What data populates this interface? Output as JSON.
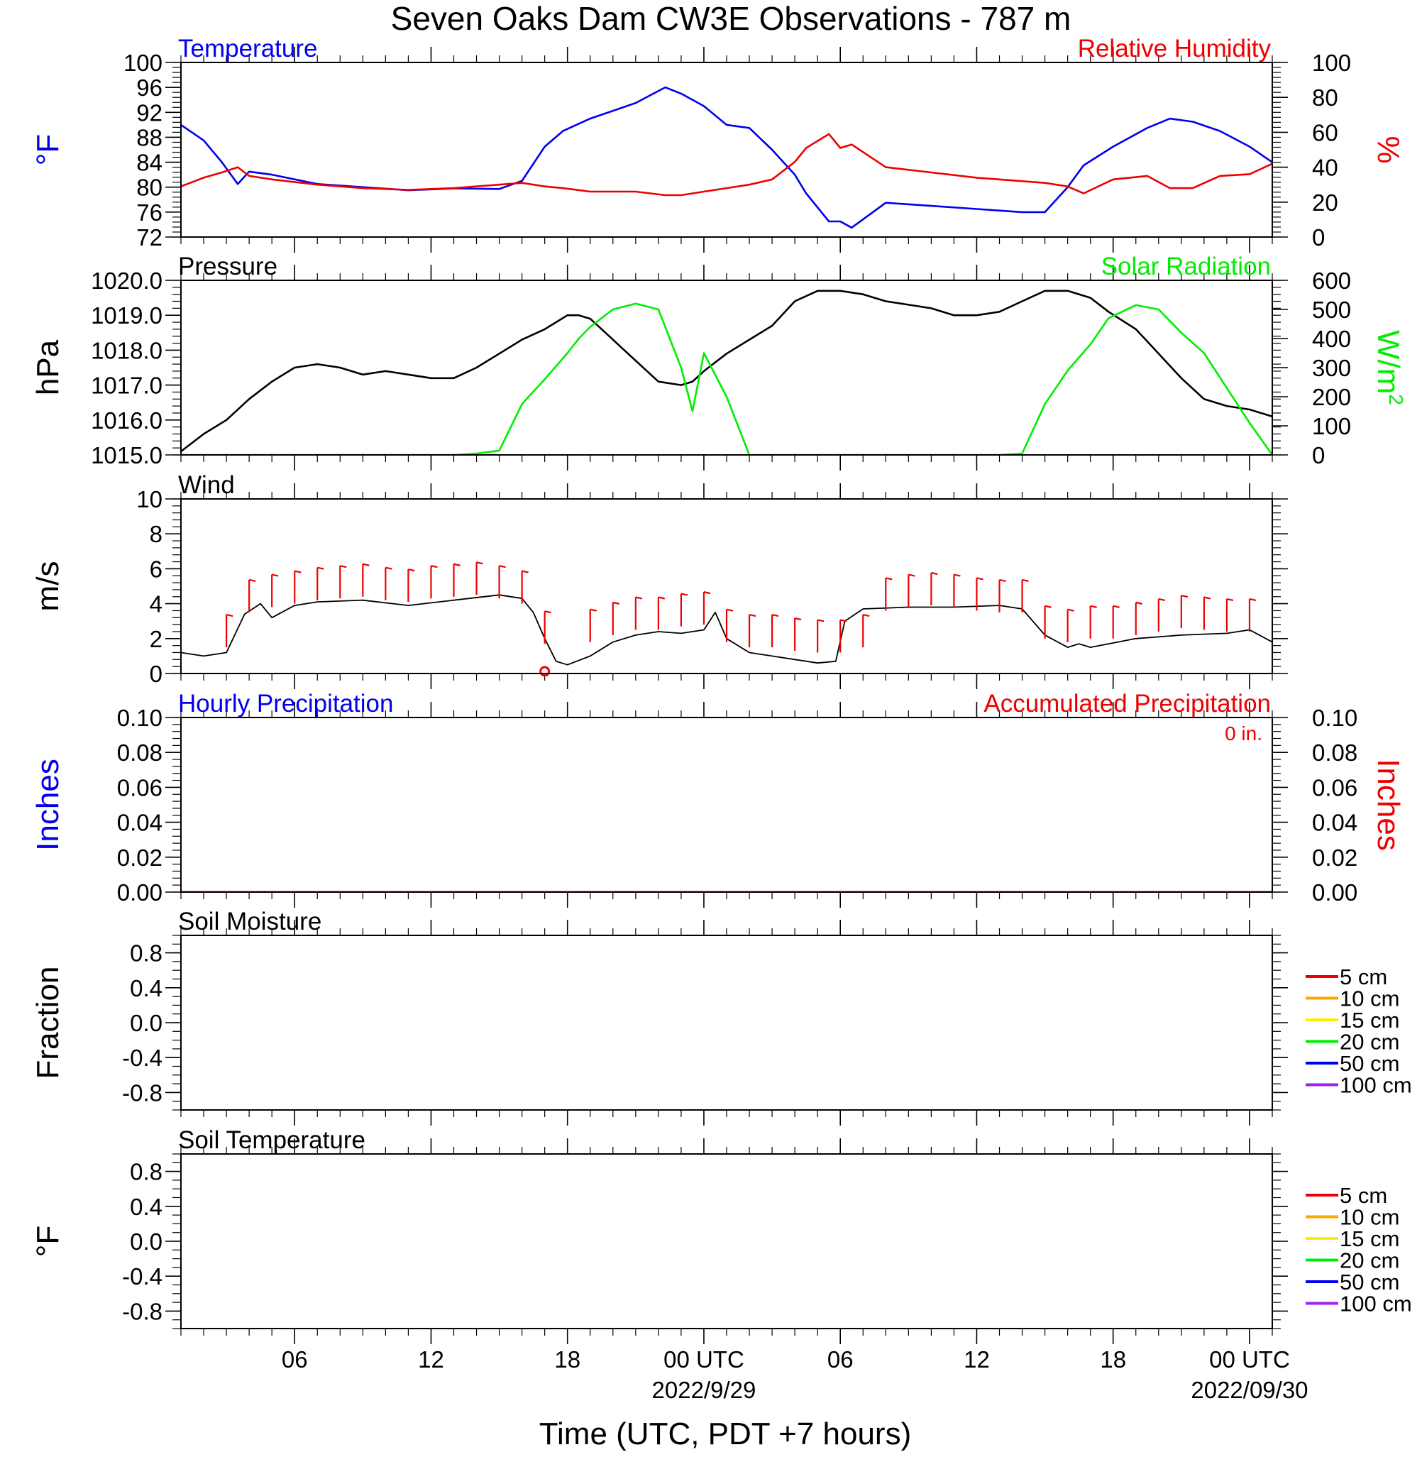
{
  "title": "Seven Oaks Dam CW3E Observations - 787 m",
  "xlabel": "Time (UTC, PDT +7 hours)",
  "colors": {
    "temperature": "#0000ee",
    "humidity": "#ee0000",
    "pressure": "#000000",
    "solar": "#00ee00",
    "wind": "#000000",
    "barb": "#ee0000",
    "precip_accum": "#ee0000"
  },
  "chart_data": [
    {
      "type": "line",
      "panel": "temperature-humidity",
      "left_title": "Temperature",
      "right_title": "Relative Humidity",
      "ylabel_left": "°F",
      "ylabel_right": "%",
      "ylim_left": [
        72,
        100
      ],
      "ylim_right": [
        0,
        100
      ],
      "yticks_left": [
        "100",
        "96",
        "92",
        "88",
        "84",
        "80",
        "76",
        "72"
      ],
      "yticks_right": [
        "100",
        "80",
        "60",
        "40",
        "20",
        "0"
      ],
      "x_hours": [
        0,
        1,
        1.8,
        2.5,
        3,
        4,
        6,
        8,
        10,
        12,
        14,
        15,
        16,
        16.8,
        18,
        20,
        21.3,
        22,
        23,
        24,
        25,
        26,
        27,
        27.5,
        28.5,
        29,
        29.5,
        31,
        33,
        35,
        37,
        38,
        39,
        39.7,
        41,
        42.5,
        43.5,
        44.5,
        45.7,
        47,
        48
      ],
      "series": [
        {
          "name": "Temperature",
          "values": [
            90,
            87.5,
            84,
            80.5,
            82.5,
            82,
            80.5,
            80,
            79.5,
            79.8,
            79.7,
            81,
            86.5,
            89,
            91,
            93.5,
            96,
            95,
            93,
            90,
            89.5,
            86,
            82,
            79,
            74.5,
            74.5,
            73.5,
            77.5,
            77,
            76.5,
            76,
            76,
            80,
            83.5,
            86.5,
            89.5,
            91,
            90.5,
            89,
            86.5,
            84
          ]
        },
        {
          "name": "Relative Humidity",
          "values": [
            29,
            34,
            37,
            40,
            35,
            33,
            30,
            28,
            27,
            28,
            30,
            31,
            29,
            28,
            26,
            26,
            24,
            24,
            26,
            28,
            30,
            33,
            43,
            51,
            59,
            51,
            53,
            40,
            37,
            34,
            32,
            31,
            29,
            25,
            33,
            35,
            28,
            28,
            35,
            36,
            42
          ]
        }
      ]
    },
    {
      "type": "line",
      "panel": "pressure-solar",
      "left_title": "Pressure",
      "right_title": "Solar Radiation",
      "ylabel_left": "hPa",
      "ylabel_right": "W/m2",
      "ylim_left": [
        1015.0,
        1020.0
      ],
      "ylim_right": [
        0,
        600
      ],
      "yticks_left": [
        "1020.0",
        "1019.0",
        "1018.0",
        "1017.0",
        "1016.0",
        "1015.0"
      ],
      "yticks_right": [
        "600",
        "500",
        "400",
        "300",
        "200",
        "100",
        "0"
      ],
      "x_hours": [
        0,
        1,
        2,
        3,
        4,
        5,
        6,
        7,
        8,
        9,
        10,
        11,
        12,
        13,
        14,
        15,
        16,
        17,
        17.5,
        18,
        19,
        20,
        21,
        22,
        22.5,
        23,
        24,
        25,
        26,
        27,
        28,
        29,
        30,
        31,
        32,
        33,
        34,
        35,
        36,
        37,
        38,
        39,
        40,
        40.8,
        42,
        43,
        44,
        45,
        46,
        47,
        48
      ],
      "series": [
        {
          "name": "Pressure",
          "values": [
            1015.1,
            1015.6,
            1016.0,
            1016.6,
            1017.1,
            1017.5,
            1017.6,
            1017.5,
            1017.3,
            1017.4,
            1017.3,
            1017.2,
            1017.2,
            1017.5,
            1017.9,
            1018.3,
            1018.6,
            1019.0,
            1019.0,
            1018.9,
            1018.3,
            1017.7,
            1017.1,
            1017.0,
            1017.1,
            1017.4,
            1017.9,
            1018.3,
            1018.7,
            1019.4,
            1019.7,
            1019.7,
            1019.6,
            1019.4,
            1019.3,
            1019.2,
            1019.0,
            1019.0,
            1019.1,
            1019.4,
            1019.7,
            1019.7,
            1019.5,
            1019.1,
            1018.6,
            1017.9,
            1017.2,
            1016.6,
            1016.4,
            1016.3,
            1016.1
          ]
        },
        {
          "name": "Solar Radiation",
          "values": [
            0,
            0,
            0,
            0,
            0,
            0,
            0,
            0,
            0,
            0,
            0,
            0,
            0,
            5,
            15,
            175,
            260,
            350,
            400,
            440,
            500,
            520,
            500,
            300,
            150,
            350,
            200,
            0,
            0,
            0,
            0,
            0,
            0,
            0,
            0,
            0,
            0,
            0,
            0,
            5,
            175,
            290,
            380,
            470,
            515,
            500,
            420,
            350,
            230,
            110,
            0
          ]
        }
      ]
    },
    {
      "type": "line",
      "panel": "wind",
      "left_title": "Wind",
      "ylabel_left": "m/s",
      "ylim_left": [
        0,
        10
      ],
      "yticks_left": [
        "10",
        "8",
        "6",
        "4",
        "2",
        "0"
      ],
      "x_hours": [
        0,
        1,
        2,
        2.8,
        3.5,
        4,
        5,
        6,
        8,
        10,
        12,
        14,
        15,
        15.5,
        16,
        16.5,
        17,
        18,
        19,
        20,
        21,
        22,
        23,
        23.5,
        24,
        25,
        26,
        27,
        28,
        28.8,
        29.2,
        30,
        32,
        34,
        36,
        37,
        38,
        39,
        39.5,
        40,
        42,
        44,
        46,
        47,
        48
      ],
      "series": [
        {
          "name": "Wind",
          "values": [
            1.2,
            1.0,
            1.2,
            3.4,
            4.0,
            3.2,
            3.9,
            4.1,
            4.2,
            3.9,
            4.2,
            4.5,
            4.3,
            3.5,
            2.0,
            0.7,
            0.5,
            1.0,
            1.8,
            2.2,
            2.4,
            2.3,
            2.5,
            3.5,
            2.0,
            1.2,
            1.0,
            0.8,
            0.6,
            0.7,
            3.0,
            3.7,
            3.8,
            3.8,
            3.9,
            3.7,
            2.2,
            1.5,
            1.7,
            1.5,
            2.0,
            2.2,
            2.3,
            2.5,
            1.8
          ]
        }
      ],
      "barb_hours": [
        2,
        3,
        4,
        5,
        6,
        7,
        8,
        9,
        10,
        11,
        12,
        13,
        14,
        15,
        16,
        17,
        18,
        19,
        20,
        21,
        22,
        23,
        24,
        25,
        26,
        27,
        28,
        29,
        30,
        31,
        32,
        33,
        34,
        35,
        36,
        37,
        38,
        39,
        40,
        41,
        42,
        43,
        44,
        45,
        46,
        47
      ],
      "barb_speeds": [
        1.5,
        3.5,
        3.8,
        4.0,
        4.2,
        4.3,
        4.4,
        4.2,
        4.1,
        4.3,
        4.4,
        4.5,
        4.3,
        4.0,
        1.7,
        0,
        1.8,
        2.2,
        2.5,
        2.5,
        2.7,
        2.8,
        1.8,
        1.5,
        1.5,
        1.3,
        1.2,
        1.2,
        1.5,
        3.6,
        3.8,
        3.9,
        3.8,
        3.6,
        3.5,
        3.5,
        2.0,
        1.8,
        2.0,
        2.0,
        2.2,
        2.4,
        2.6,
        2.5,
        2.4,
        2.4
      ],
      "calm_marker_hour": 16
    },
    {
      "type": "line",
      "panel": "precipitation",
      "left_title": "Hourly Precipitation",
      "right_title": "Accumulated Precipitation",
      "annotation": "0 in.",
      "ylabel_left": "Inches",
      "ylabel_right": "Inches",
      "ylim_left": [
        0,
        0.1
      ],
      "ylim_right": [
        0,
        0.1
      ],
      "yticks_left": [
        "0.10",
        "0.08",
        "0.06",
        "0.04",
        "0.02",
        "0.00"
      ],
      "yticks_right": [
        "0.10",
        "0.08",
        "0.06",
        "0.04",
        "0.02",
        "0.00"
      ],
      "x_hours": [
        0,
        48
      ],
      "series": [
        {
          "name": "Hourly Precipitation",
          "values": [
            0,
            0
          ]
        },
        {
          "name": "Accumulated Precipitation",
          "values": [
            0,
            0
          ]
        }
      ]
    },
    {
      "type": "line",
      "panel": "soil-moisture",
      "left_title": "Soil Moisture",
      "ylabel_left": "Fraction",
      "ylim_left": [
        -1,
        1
      ],
      "yticks_left": [
        "0.8",
        "0.4",
        "0.0",
        "-0.4",
        "-0.8"
      ],
      "legend": [
        {
          "name": "5 cm",
          "color": "#ee0000"
        },
        {
          "name": "10 cm",
          "color": "#ffa500"
        },
        {
          "name": "15 cm",
          "color": "#ffee00"
        },
        {
          "name": "20 cm",
          "color": "#00ee00"
        },
        {
          "name": "50 cm",
          "color": "#0000ee"
        },
        {
          "name": "100 cm",
          "color": "#a020f0"
        }
      ],
      "series": []
    },
    {
      "type": "line",
      "panel": "soil-temperature",
      "left_title": "Soil Temperature",
      "ylabel_left": "°F",
      "ylim_left": [
        -1,
        1
      ],
      "yticks_left": [
        "0.8",
        "0.4",
        "0.0",
        "-0.4",
        "-0.8"
      ],
      "legend": [
        {
          "name": "5 cm",
          "color": "#ee0000"
        },
        {
          "name": "10 cm",
          "color": "#ffa500"
        },
        {
          "name": "15 cm",
          "color": "#ffee00"
        },
        {
          "name": "20 cm",
          "color": "#00ee00"
        },
        {
          "name": "50 cm",
          "color": "#0000ee"
        },
        {
          "name": "100 cm",
          "color": "#a020f0"
        }
      ],
      "series": []
    }
  ],
  "xaxis": {
    "ticks": [
      {
        "hour": 5,
        "label": "06"
      },
      {
        "hour": 11,
        "label": "12"
      },
      {
        "hour": 17,
        "label": "18"
      },
      {
        "hour": 23,
        "label": "00 UTC",
        "date": "2022/9/29"
      },
      {
        "hour": 29,
        "label": "06"
      },
      {
        "hour": 35,
        "label": "12"
      },
      {
        "hour": 41,
        "label": "18"
      },
      {
        "hour": 47,
        "label": "00 UTC",
        "date": "2022/09/30"
      }
    ],
    "range_hours": [
      0,
      48
    ]
  }
}
